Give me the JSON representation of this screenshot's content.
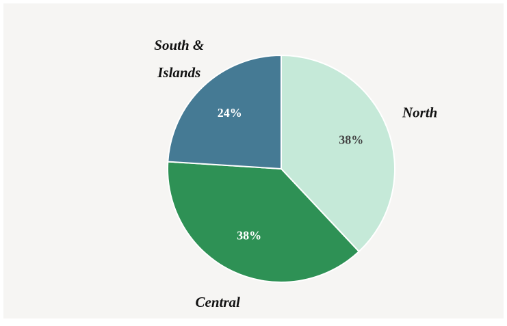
{
  "chart_data": {
    "type": "pie",
    "categories": [
      "North",
      "Central",
      "South & Islands"
    ],
    "values": [
      38,
      38,
      24
    ],
    "value_labels": [
      "38%",
      "38%",
      "24%"
    ],
    "colors": [
      "#c5e9d8",
      "#2e9155",
      "#457a94"
    ]
  }
}
